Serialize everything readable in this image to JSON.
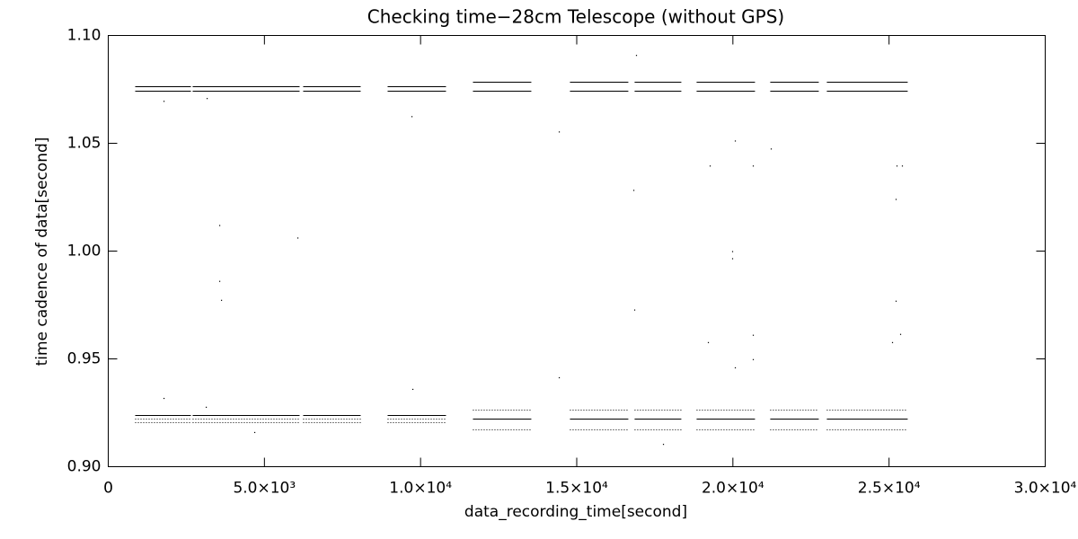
{
  "chart_data": {
    "type": "scatter",
    "title": "Checking time−28cm Telescope (without GPS)",
    "x_label": "data_recording_time[second]",
    "y_label": "time cadence of data[second]",
    "xlim": [
      0,
      30000
    ],
    "ylim": [
      0.9,
      1.1
    ],
    "xticks": [
      0,
      {
        "value": 5000,
        "label": "5.0×10³"
      },
      {
        "value": 10000,
        "label": "1.0×10⁴"
      },
      {
        "value": 15000,
        "label": "1.5×10⁴"
      },
      {
        "value": 20000,
        "label": "2.0×10⁴"
      },
      {
        "value": 25000,
        "label": "2.5×10⁴"
      },
      {
        "value": 30000,
        "label": "3.0×10⁴"
      }
    ],
    "yticks": [
      {
        "value": 0.9,
        "label": "0.90"
      },
      0.95,
      {
        "value": 1.0,
        "label": "1.00"
      },
      1.05,
      {
        "value": 1.1,
        "label": "1.10"
      }
    ],
    "color": "#000000",
    "lines": [
      {
        "style": "solid",
        "x": [
          863,
          2646,
          null,
          2703,
          6126,
          null,
          6241,
          8082,
          null,
          8945,
          10814
        ],
        "values": [
          1.0766,
          1.0766,
          null,
          1.0766,
          1.0766,
          null,
          1.0766,
          1.0766,
          null,
          1.0766,
          1.0766
        ]
      },
      {
        "style": "solid",
        "x": [
          863,
          2646,
          null,
          2703,
          6126,
          null,
          6241,
          8082,
          null,
          8945,
          10814,
          null,
          11677,
          13546,
          null,
          14783,
          16652,
          null,
          16853,
          18349,
          null,
          18838,
          20708,
          null,
          21196,
          22750,
          null,
          23008,
          25597
        ],
        "values": [
          1.0745,
          1.0745,
          null,
          1.0745,
          1.0745,
          null,
          1.0745,
          1.0745,
          null,
          1.0745,
          1.0745,
          null,
          1.0745,
          1.0745,
          null,
          1.0745,
          1.0745,
          null,
          1.0745,
          1.0745,
          null,
          1.0745,
          1.0745,
          null,
          1.0745,
          1.0745,
          null,
          1.0745,
          1.0745
        ]
      },
      {
        "style": "solid",
        "x": [
          11677,
          13546,
          null,
          14783,
          16652,
          null,
          16853,
          18349,
          null,
          18838,
          20708,
          null,
          21196,
          22750,
          null,
          23008,
          25597
        ],
        "values": [
          1.0787,
          1.0787,
          null,
          1.0787,
          1.0787,
          null,
          1.0787,
          1.0787,
          null,
          1.0787,
          1.0787,
          null,
          1.0787,
          1.0787,
          null,
          1.0787,
          1.0787
        ]
      },
      {
        "style": "solid",
        "x": [
          863,
          2646,
          null,
          2703,
          6126,
          null,
          6241,
          8082,
          null,
          8945,
          10814
        ],
        "values": [
          0.9238,
          0.9238,
          null,
          0.9238,
          0.9238,
          null,
          0.9238,
          0.9238,
          null,
          0.9238,
          0.9238
        ]
      },
      {
        "style": "dotted",
        "x": [
          863,
          2646,
          null,
          2703,
          6126,
          null,
          6241,
          8082,
          null,
          8945,
          10814
        ],
        "values": [
          0.9221,
          0.9221,
          null,
          0.9221,
          0.9221,
          null,
          0.9221,
          0.9221,
          null,
          0.9221,
          0.9221
        ]
      },
      {
        "style": "dotted",
        "x": [
          863,
          2646,
          null,
          2703,
          6126,
          null,
          6241,
          8082,
          null,
          8945,
          10814
        ],
        "values": [
          0.9205,
          0.9205,
          null,
          0.9205,
          0.9205,
          null,
          0.9205,
          0.9205,
          null,
          0.9205,
          0.9205
        ]
      },
      {
        "style": "dotted",
        "x": [
          11677,
          13546,
          null,
          14783,
          16652,
          null,
          16853,
          18349,
          null,
          18838,
          20708,
          null,
          21196,
          22750,
          null,
          23008,
          25597
        ],
        "values": [
          0.9263,
          0.9263,
          null,
          0.9263,
          0.9263,
          null,
          0.9263,
          0.9263,
          null,
          0.9263,
          0.9263,
          null,
          0.9263,
          0.9263,
          null,
          0.9263,
          0.9263
        ]
      },
      {
        "style": "solid",
        "x": [
          11677,
          13546,
          null,
          14783,
          16652,
          null,
          16853,
          18349,
          null,
          18838,
          20708,
          null,
          21196,
          22750,
          null,
          23008,
          25597
        ],
        "values": [
          0.9221,
          0.9221,
          null,
          0.9221,
          0.9221,
          null,
          0.9221,
          0.9221,
          null,
          0.9221,
          0.9221,
          null,
          0.9221,
          0.9221,
          null,
          0.9221,
          0.9221
        ]
      },
      {
        "style": "dotted",
        "x": [
          11677,
          13546,
          null,
          14783,
          16652,
          null,
          16853,
          18349,
          null,
          18838,
          20708,
          null,
          21196,
          22750,
          null,
          23008,
          25597
        ],
        "values": [
          0.9175,
          0.9175,
          null,
          0.9175,
          0.9175,
          null,
          0.9175,
          0.9175,
          null,
          0.9175,
          0.9175,
          null,
          0.9175,
          0.9175,
          null,
          0.9175,
          0.9175
        ]
      }
    ],
    "points": {
      "x": [
        1783,
        9721,
        3566,
        6068,
        3566,
        3624,
        14438,
        16825,
        19270,
        20075,
        20650,
        21225,
        25252,
        25424,
        25223,
        19988,
        19988,
        16853,
        25223,
        19212,
        20075,
        20650,
        20650,
        25108,
        25367,
        14438,
        9750,
        1783,
        3135,
        4688,
        17774,
        16910,
        3164
      ],
      "values": [
        1.0695,
        1.0624,
        1.0119,
        1.0061,
        0.986,
        0.9772,
        1.0553,
        1.0282,
        1.0395,
        1.0511,
        1.0395,
        1.0474,
        1.0395,
        1.0395,
        1.024,
        0.9998,
        0.9965,
        0.9727,
        0.9768,
        0.9576,
        0.9459,
        0.9497,
        0.961,
        0.9576,
        0.9614,
        0.9413,
        0.9359,
        0.9317,
        0.9276,
        0.9159,
        0.9104,
        1.0908,
        1.0708
      ]
    }
  }
}
